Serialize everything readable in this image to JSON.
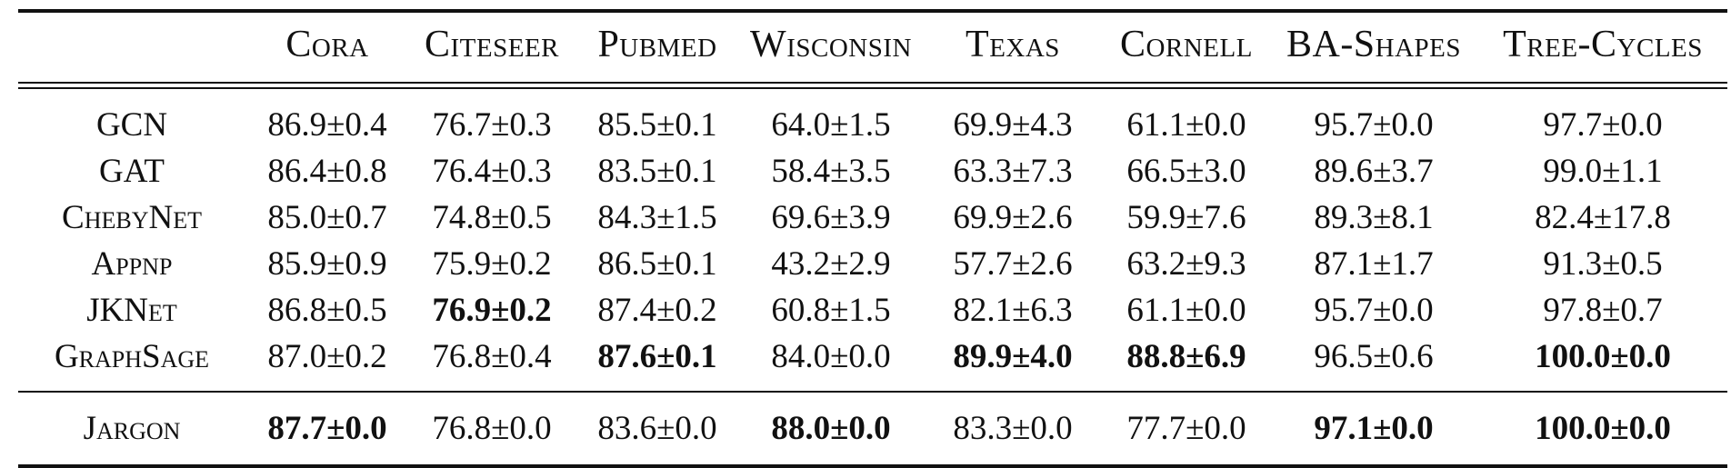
{
  "table": {
    "columns": [
      "Cora",
      "Citeseer",
      "Pubmed",
      "Wisconsin",
      "Texas",
      "Cornell",
      "BA-Shapes",
      "Tree-Cycles"
    ],
    "rows": [
      {
        "method": "GCN",
        "values": [
          "86.9±0.4",
          "76.7±0.3",
          "85.5±0.1",
          "64.0±1.5",
          "69.9±4.3",
          "61.1±0.0",
          "95.7±0.0",
          "97.7±0.0"
        ],
        "bold": [
          false,
          false,
          false,
          false,
          false,
          false,
          false,
          false
        ]
      },
      {
        "method": "GAT",
        "values": [
          "86.4±0.8",
          "76.4±0.3",
          "83.5±0.1",
          "58.4±3.5",
          "63.3±7.3",
          "66.5±3.0",
          "89.6±3.7",
          "99.0±1.1"
        ],
        "bold": [
          false,
          false,
          false,
          false,
          false,
          false,
          false,
          false
        ]
      },
      {
        "method": "ChebyNet",
        "values": [
          "85.0±0.7",
          "74.8±0.5",
          "84.3±1.5",
          "69.6±3.9",
          "69.9±2.6",
          "59.9±7.6",
          "89.3±8.1",
          "82.4±17.8"
        ],
        "bold": [
          false,
          false,
          false,
          false,
          false,
          false,
          false,
          false
        ]
      },
      {
        "method": "Appnp",
        "values": [
          "85.9±0.9",
          "75.9±0.2",
          "86.5±0.1",
          "43.2±2.9",
          "57.7±2.6",
          "63.2±9.3",
          "87.1±1.7",
          "91.3±0.5"
        ],
        "bold": [
          false,
          false,
          false,
          false,
          false,
          false,
          false,
          false
        ]
      },
      {
        "method": "JKNet",
        "values": [
          "86.8±0.5",
          "76.9±0.2",
          "87.4±0.2",
          "60.8±1.5",
          "82.1±6.3",
          "61.1±0.0",
          "95.7±0.0",
          "97.8±0.7"
        ],
        "bold": [
          false,
          true,
          false,
          false,
          false,
          false,
          false,
          false
        ]
      },
      {
        "method": "GraphSage",
        "values": [
          "87.0±0.2",
          "76.8±0.4",
          "87.6±0.1",
          "84.0±0.0",
          "89.9±4.0",
          "88.8±6.9",
          "96.5±0.6",
          "100.0±0.0"
        ],
        "bold": [
          false,
          false,
          true,
          false,
          true,
          true,
          false,
          true
        ]
      },
      {
        "method": "Jargon",
        "values": [
          "87.7±0.0",
          "76.8±0.0",
          "83.6±0.0",
          "88.0±0.0",
          "83.3±0.0",
          "77.7±0.0",
          "97.1±0.0",
          "100.0±0.0"
        ],
        "bold": [
          true,
          false,
          false,
          true,
          false,
          false,
          true,
          true
        ]
      }
    ]
  }
}
